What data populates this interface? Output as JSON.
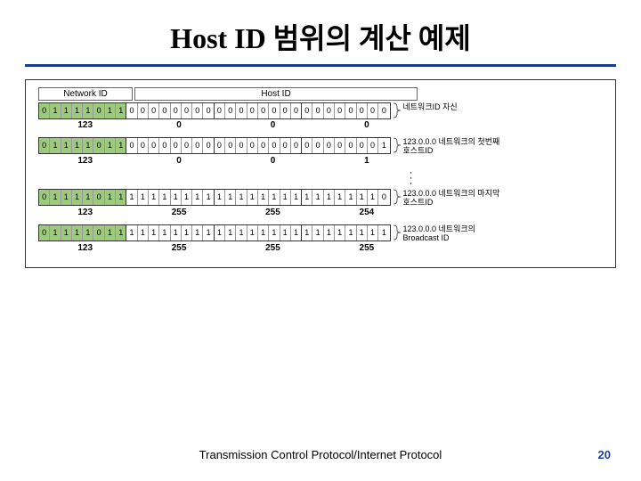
{
  "title": "Host ID 범위의 계산 예제",
  "header": {
    "net": "Network ID",
    "host": "Host ID"
  },
  "rows": [
    {
      "bits": [
        "0",
        "1",
        "1",
        "1",
        "1",
        "0",
        "1",
        "1",
        "0",
        "0",
        "0",
        "0",
        "0",
        "0",
        "0",
        "0",
        "0",
        "0",
        "0",
        "0",
        "0",
        "0",
        "0",
        "0",
        "0",
        "0",
        "0",
        "0",
        "0",
        "0",
        "0",
        "0"
      ],
      "decs": [
        "123",
        "0",
        "0",
        "0"
      ],
      "label": "네트워크ID 자신"
    },
    {
      "bits": [
        "0",
        "1",
        "1",
        "1",
        "1",
        "0",
        "1",
        "1",
        "0",
        "0",
        "0",
        "0",
        "0",
        "0",
        "0",
        "0",
        "0",
        "0",
        "0",
        "0",
        "0",
        "0",
        "0",
        "0",
        "0",
        "0",
        "0",
        "0",
        "0",
        "0",
        "0",
        "1"
      ],
      "decs": [
        "123",
        "0",
        "0",
        "1"
      ],
      "label": "123.0.0.0 네트워크의 첫번째 호스트ID"
    },
    {
      "bits": [
        "0",
        "1",
        "1",
        "1",
        "1",
        "0",
        "1",
        "1",
        "1",
        "1",
        "1",
        "1",
        "1",
        "1",
        "1",
        "1",
        "1",
        "1",
        "1",
        "1",
        "1",
        "1",
        "1",
        "1",
        "1",
        "1",
        "1",
        "1",
        "1",
        "1",
        "1",
        "0"
      ],
      "decs": [
        "123",
        "255",
        "255",
        "254"
      ],
      "label": "123.0.0.0 네트워크의 마지막 호스트ID"
    },
    {
      "bits": [
        "0",
        "1",
        "1",
        "1",
        "1",
        "0",
        "1",
        "1",
        "1",
        "1",
        "1",
        "1",
        "1",
        "1",
        "1",
        "1",
        "1",
        "1",
        "1",
        "1",
        "1",
        "1",
        "1",
        "1",
        "1",
        "1",
        "1",
        "1",
        "1",
        "1",
        "1",
        "1"
      ],
      "decs": [
        "123",
        "255",
        "255",
        "255"
      ],
      "label": "123.0.0.0 네트워크의 Broadcast ID"
    }
  ],
  "footer": "Transmission Control Protocol/Internet Protocol",
  "page": "20",
  "colors": {
    "green": "#9eca7f",
    "rule": "#1a3a8a"
  }
}
